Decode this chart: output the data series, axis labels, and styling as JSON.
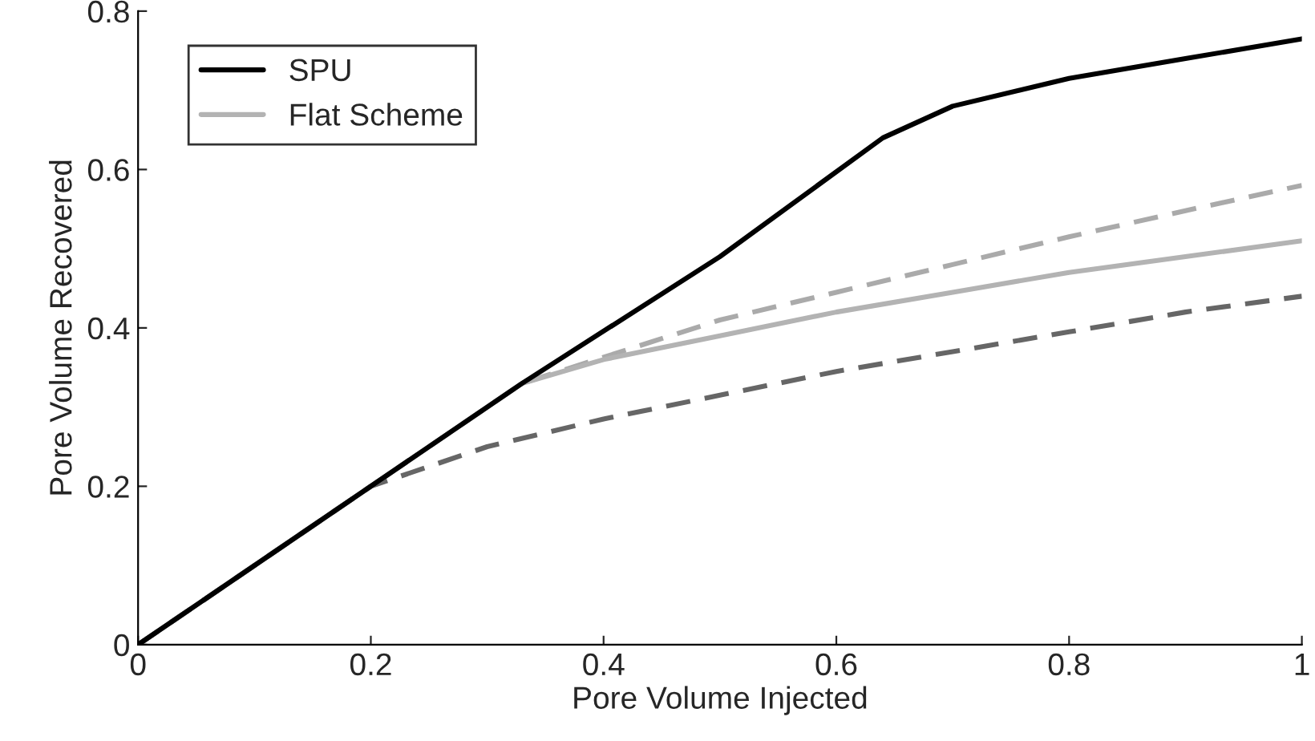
{
  "chart_data": {
    "type": "line",
    "xlabel": "Pore Volume Injected",
    "ylabel": "Pore Volume Recovered",
    "xlim": [
      0,
      1
    ],
    "ylim": [
      0,
      0.8
    ],
    "xticks": [
      0,
      0.2,
      0.4,
      0.6,
      0.8,
      1
    ],
    "yticks": [
      0,
      0.2,
      0.4,
      0.6,
      0.8
    ],
    "grid": false,
    "legend": "top left",
    "marker": "none",
    "series": [
      {
        "x": [
          0,
          0.2,
          0.33,
          0.5,
          0.6,
          0.7,
          0.8,
          0.9,
          1
        ],
        "values": [
          0,
          0.2,
          0.33,
          0.41,
          0.445,
          0.48,
          0.515,
          0.548,
          0.58
        ],
        "color": "#aaaaaa",
        "line_style": "dashed"
      },
      {
        "x": [
          0,
          0.2,
          0.3,
          0.4,
          0.5,
          0.6,
          0.7,
          0.8,
          0.9,
          1
        ],
        "values": [
          0,
          0.2,
          0.25,
          0.285,
          0.315,
          0.345,
          0.37,
          0.395,
          0.42,
          0.44
        ],
        "color": "#666666",
        "line_style": "dashed"
      },
      {
        "name": "Flat Scheme",
        "x": [
          0,
          0.33,
          0.4,
          0.5,
          0.6,
          0.7,
          0.8,
          0.9,
          1
        ],
        "values": [
          0,
          0.33,
          0.36,
          0.39,
          0.42,
          0.445,
          0.47,
          0.49,
          0.51
        ],
        "color": "#b3b3b3",
        "line_style": "solid"
      },
      {
        "name": "SPU",
        "x": [
          0,
          0.33,
          0.5,
          0.64,
          0.7,
          0.8,
          0.9,
          1
        ],
        "values": [
          0,
          0.33,
          0.49,
          0.64,
          0.68,
          0.715,
          0.74,
          0.765
        ],
        "color": "#000000",
        "line_style": "solid"
      }
    ]
  }
}
